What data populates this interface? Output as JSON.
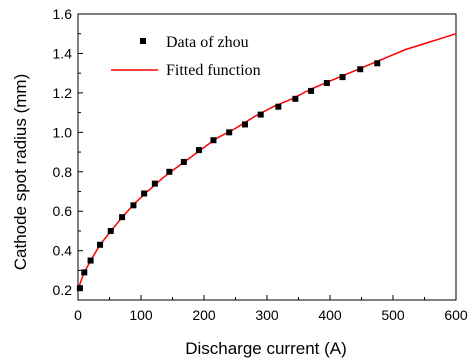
{
  "chart_data": {
    "type": "scatter",
    "xlabel": "Discharge current (A)",
    "ylabel": "Cathode spot radius (mm)",
    "xlim": [
      0,
      600
    ],
    "ylim": [
      0.15,
      1.6
    ],
    "xticks": [
      0,
      100,
      200,
      300,
      400,
      500,
      600
    ],
    "yticks": [
      0.2,
      0.4,
      0.6,
      0.8,
      1.0,
      1.2,
      1.4,
      1.6
    ],
    "ytick_labels": [
      "0.2",
      "0.4",
      "0.6",
      "0.8",
      "1.0",
      "1.2",
      "1.4",
      "1.6"
    ],
    "grid": false,
    "legend_position": "top-left",
    "series": [
      {
        "name": "Data of zhou",
        "kind": "scatter",
        "marker": "square",
        "color": "#000000",
        "x": [
          3,
          10,
          20,
          35,
          52,
          70,
          88,
          105,
          122,
          145,
          168,
          192,
          215,
          240,
          265,
          290,
          318,
          345,
          370,
          395,
          420,
          448,
          475
        ],
        "y": [
          0.21,
          0.29,
          0.35,
          0.43,
          0.5,
          0.57,
          0.63,
          0.69,
          0.74,
          0.8,
          0.85,
          0.91,
          0.96,
          1.0,
          1.04,
          1.09,
          1.13,
          1.17,
          1.21,
          1.25,
          1.28,
          1.32,
          1.35
        ]
      },
      {
        "name": "Fitted function",
        "kind": "line",
        "color": "#ff0000",
        "x": [
          0,
          5,
          10,
          20,
          35,
          50,
          70,
          90,
          110,
          135,
          160,
          190,
          220,
          250,
          280,
          310,
          340,
          370,
          400,
          430,
          460,
          490,
          520,
          550,
          580,
          600
        ],
        "y": [
          0.2,
          0.25,
          0.29,
          0.35,
          0.43,
          0.49,
          0.57,
          0.64,
          0.7,
          0.77,
          0.83,
          0.9,
          0.97,
          1.02,
          1.08,
          1.13,
          1.17,
          1.22,
          1.26,
          1.3,
          1.34,
          1.38,
          1.42,
          1.45,
          1.48,
          1.5
        ]
      }
    ]
  }
}
